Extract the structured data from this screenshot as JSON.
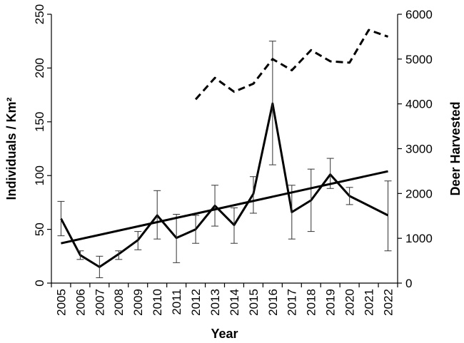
{
  "chart_data": {
    "type": "line",
    "title": "",
    "xlabel": "Year",
    "ylabel_left": "Individuals / Km²",
    "ylabel_right": "Deer Harvested",
    "x": [
      2005,
      2006,
      2007,
      2008,
      2009,
      2010,
      2011,
      2012,
      2013,
      2014,
      2015,
      2016,
      2017,
      2018,
      2019,
      2020,
      2021,
      2022
    ],
    "x_tick_labels": [
      "2005",
      "2006",
      "2007",
      "2008",
      "2009",
      "2010",
      "2011",
      "2012",
      "2013",
      "2014",
      "2015",
      "2016",
      "2017",
      "2018",
      "2019",
      "2020",
      "2021",
      "2022"
    ],
    "ylim_left": [
      0,
      250
    ],
    "yticks_left": [
      0,
      50,
      100,
      150,
      200,
      250
    ],
    "ylim_right": [
      0,
      6000
    ],
    "yticks_right": [
      0,
      1000,
      2000,
      3000,
      4000,
      5000,
      6000
    ],
    "grid": false,
    "legend": "none",
    "series": [
      {
        "axis": "left",
        "style": "solid",
        "color": "#000000",
        "x": [
          2005,
          2006,
          2007,
          2008,
          2009,
          2010,
          2011,
          2012,
          2013,
          2014,
          2015,
          2016,
          2017,
          2018,
          2019,
          2020,
          2022
        ],
        "values": [
          60,
          26,
          15,
          27,
          40,
          63,
          42,
          50,
          72,
          54,
          83,
          167,
          66,
          77,
          101,
          81,
          63
        ],
        "err_low": [
          44,
          22,
          5,
          22,
          31,
          41,
          19,
          37,
          53,
          37,
          65,
          110,
          41,
          48,
          88,
          73,
          30
        ],
        "err_high": [
          76,
          30,
          25,
          30,
          48,
          86,
          64,
          63,
          91,
          70,
          99,
          225,
          91,
          106,
          116,
          89,
          95
        ]
      },
      {
        "axis": "left",
        "style": "trend",
        "color": "#000000",
        "x": [
          2005,
          2022
        ],
        "values": [
          37,
          104
        ]
      },
      {
        "axis": "right",
        "style": "dashed",
        "color": "#000000",
        "x": [
          2012,
          2013,
          2014,
          2015,
          2016,
          2017,
          2018,
          2019,
          2020,
          2021,
          2022
        ],
        "values": [
          4100,
          4580,
          4270,
          4450,
          5000,
          4750,
          5200,
          4950,
          4920,
          5650,
          5500
        ]
      }
    ]
  }
}
